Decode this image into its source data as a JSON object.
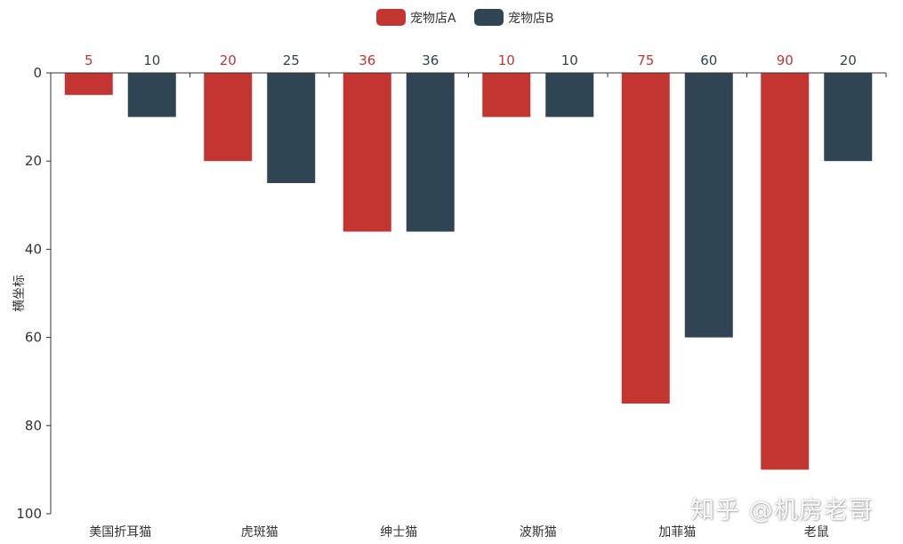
{
  "chart_data": {
    "type": "bar",
    "orientation": "vertical",
    "y_axis_inverse": true,
    "x_axis_position": "top",
    "categories": [
      "美国折耳猫",
      "虎斑猫",
      "绅士猫",
      "波斯猫",
      "加菲猫",
      "老鼠"
    ],
    "series": [
      {
        "name": "宠物店A",
        "values": [
          5,
          20,
          36,
          10,
          75,
          90
        ],
        "color": "#c23531"
      },
      {
        "name": "宠物店B",
        "values": [
          10,
          25,
          36,
          10,
          60,
          20
        ],
        "color": "#2f4554"
      }
    ],
    "ylabel": "横坐标",
    "ylim": [
      0,
      100
    ],
    "yticks": [
      0,
      20,
      40,
      60,
      80,
      100
    ],
    "data_labels": true,
    "legend_position": "top-center",
    "grid": false
  },
  "watermark": "知乎 @机房老哥"
}
